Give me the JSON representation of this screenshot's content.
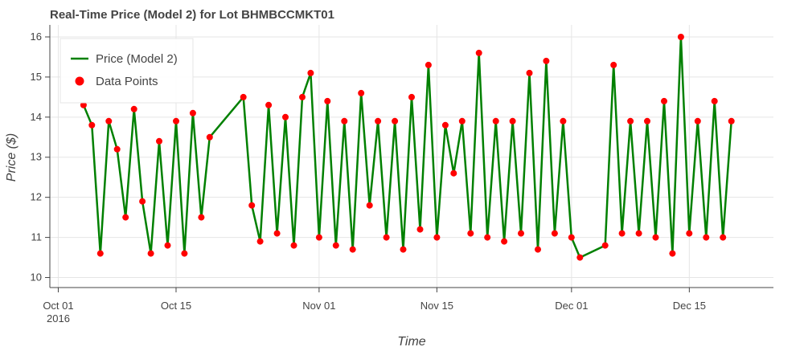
{
  "chart_data": {
    "type": "line",
    "title": "Real-Time Price (Model 2) for Lot BHMBCCMKT01",
    "xlabel": "Time",
    "ylabel": "Price ($)",
    "x_ticks": [
      {
        "date": "2016-10-01",
        "label": "Oct 01",
        "sublabel": "2016"
      },
      {
        "date": "2016-10-15",
        "label": "Oct 15",
        "sublabel": ""
      },
      {
        "date": "2016-11-01",
        "label": "Nov 01",
        "sublabel": ""
      },
      {
        "date": "2016-11-15",
        "label": "Nov 15",
        "sublabel": ""
      },
      {
        "date": "2016-12-01",
        "label": "Dec 01",
        "sublabel": ""
      },
      {
        "date": "2016-12-15",
        "label": "Dec 15",
        "sublabel": ""
      }
    ],
    "y_ticks": [
      10,
      11,
      12,
      13,
      14,
      15,
      16
    ],
    "xlim": [
      "2016-09-30",
      "2016-12-25"
    ],
    "ylim": [
      9.75,
      16.3
    ],
    "grid": true,
    "legend_position": "top-left",
    "colors": {
      "line": "#008000",
      "points": "#ff0000"
    },
    "series": [
      {
        "name": "Price (Model 2)",
        "marker_name": "Data Points",
        "x": [
          "2016-10-04",
          "2016-10-05",
          "2016-10-06",
          "2016-10-07",
          "2016-10-08",
          "2016-10-09",
          "2016-10-10",
          "2016-10-11",
          "2016-10-12",
          "2016-10-13",
          "2016-10-14",
          "2016-10-15",
          "2016-10-16",
          "2016-10-17",
          "2016-10-18",
          "2016-10-19",
          "2016-10-23",
          "2016-10-24",
          "2016-10-25",
          "2016-10-26",
          "2016-10-27",
          "2016-10-28",
          "2016-10-29",
          "2016-10-30",
          "2016-10-31",
          "2016-11-01",
          "2016-11-02",
          "2016-11-03",
          "2016-11-04",
          "2016-11-05",
          "2016-11-06",
          "2016-11-07",
          "2016-11-08",
          "2016-11-09",
          "2016-11-10",
          "2016-11-11",
          "2016-11-12",
          "2016-11-13",
          "2016-11-14",
          "2016-11-15",
          "2016-11-16",
          "2016-11-17",
          "2016-11-18",
          "2016-11-19",
          "2016-11-20",
          "2016-11-21",
          "2016-11-22",
          "2016-11-23",
          "2016-11-24",
          "2016-11-25",
          "2016-11-26",
          "2016-11-27",
          "2016-11-28",
          "2016-11-29",
          "2016-11-30",
          "2016-12-01",
          "2016-12-02",
          "2016-12-05",
          "2016-12-06",
          "2016-12-07",
          "2016-12-08",
          "2016-12-09",
          "2016-12-10",
          "2016-12-11",
          "2016-12-12",
          "2016-12-13",
          "2016-12-14",
          "2016-12-15",
          "2016-12-16",
          "2016-12-17",
          "2016-12-18",
          "2016-12-19",
          "2016-12-20"
        ],
        "y": [
          14.3,
          13.8,
          10.6,
          13.9,
          13.2,
          11.5,
          14.2,
          11.9,
          10.6,
          13.4,
          10.8,
          13.9,
          10.6,
          14.1,
          11.5,
          13.5,
          14.5,
          11.8,
          10.9,
          14.3,
          11.1,
          14.0,
          10.8,
          14.5,
          15.1,
          11.0,
          14.4,
          10.8,
          13.9,
          10.7,
          14.6,
          11.8,
          13.9,
          11.0,
          13.9,
          10.7,
          14.5,
          11.2,
          15.3,
          11.0,
          13.8,
          12.6,
          13.9,
          11.1,
          15.6,
          11.0,
          13.9,
          10.9,
          13.9,
          11.1,
          15.1,
          10.7,
          15.4,
          11.1,
          13.9,
          11.0,
          10.5,
          10.8,
          15.3,
          11.1,
          13.9,
          11.1,
          13.9,
          11.0,
          14.4,
          10.6,
          16.0,
          11.1,
          13.9,
          11.0,
          14.4,
          11.0,
          13.9
        ]
      }
    ]
  }
}
